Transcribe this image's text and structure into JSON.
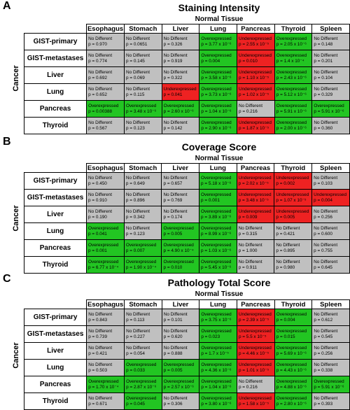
{
  "colors": {
    "not_different": "#c0c0c0",
    "overexpressed": "#22c522",
    "underexpressed": "#ee2222"
  },
  "columns": [
    "Esophagus",
    "Stomach",
    "Liver",
    "Lung",
    "Pancreas",
    "Thyroid",
    "Spleen"
  ],
  "column_group_label": "Normal Tissue",
  "row_group_label": "Cancer",
  "panels": [
    {
      "letter": "A",
      "title": "Staining Intensity",
      "rows": [
        {
          "label": "GIST-primary",
          "cells": [
            {
              "s": "nd",
              "t": "No Different",
              "p": "p = 0.970"
            },
            {
              "s": "nd",
              "t": "No Different",
              "p": "p = 0.0651"
            },
            {
              "s": "nd",
              "t": "No Different",
              "p": "p = 0.326"
            },
            {
              "s": "ov",
              "t": "Overexpressed",
              "p": "p = 3.77 x 10⁻⁶"
            },
            {
              "s": "un",
              "t": "Underexpressed",
              "p": "p = 2.55 x 10⁻⁵"
            },
            {
              "s": "ov",
              "t": "Overexpressed",
              "p": "p = 2.05 x 10⁻⁶"
            },
            {
              "s": "nd",
              "t": "No Different",
              "p": "p = 0.148"
            }
          ]
        },
        {
          "label": "GIST-metastases",
          "cells": [
            {
              "s": "nd",
              "t": "No Different",
              "p": "p = 0.774"
            },
            {
              "s": "nd",
              "t": "No Different",
              "p": "p = 0.145"
            },
            {
              "s": "nd",
              "t": "No Different",
              "p": "p = 0.919"
            },
            {
              "s": "ov",
              "t": "Overexpressed",
              "p": "p = 0.004"
            },
            {
              "s": "un",
              "t": "Underexpressed",
              "p": "p = 0.010"
            },
            {
              "s": "ov",
              "t": "Overexpressed",
              "p": "p = 1.4 x 10⁻⁴"
            },
            {
              "s": "nd",
              "t": "No Different",
              "p": "p = 0.201"
            }
          ]
        },
        {
          "label": "Liver",
          "cells": [
            {
              "s": "nd",
              "t": "No Different",
              "p": "p = 0.692"
            },
            {
              "s": "nd",
              "t": "No Different",
              "p": "p = 0.069"
            },
            {
              "s": "nd",
              "t": "No Different",
              "p": "p = 0.322"
            },
            {
              "s": "ov",
              "t": "Overexpressed",
              "p": "p = 3.58 x 10⁻⁶"
            },
            {
              "s": "un",
              "t": "Underexpressed",
              "p": "p = 1.10 x 10⁻⁵"
            },
            {
              "s": "ov",
              "t": "Overexpressed",
              "p": "p = 2.43 x 10⁻⁶"
            },
            {
              "s": "nd",
              "t": "No Different",
              "p": "p = 0.104"
            }
          ]
        },
        {
          "label": "Lung",
          "cells": [
            {
              "s": "nd",
              "t": "No Different",
              "p": "p = 0.652"
            },
            {
              "s": "nd",
              "t": "No Different",
              "p": "p = 0.115"
            },
            {
              "s": "un",
              "t": "Underexpressed",
              "p": "p = 0.041"
            },
            {
              "s": "ov",
              "t": "Overexpressed",
              "p": "p = 3.73 x 10⁻⁶"
            },
            {
              "s": "un",
              "t": "Underexpressed",
              "p": "p = 1.02 x 10⁻⁵"
            },
            {
              "s": "ov",
              "t": "Overexpressed",
              "p": "p = 5.12 x 10⁻⁶"
            },
            {
              "s": "nd",
              "t": "No Different",
              "p": "p = 0.329"
            }
          ]
        },
        {
          "label": "Pancreas",
          "cells": [
            {
              "s": "ov",
              "t": "Overexpressed",
              "p": "p = 0.00388"
            },
            {
              "s": "ov",
              "t": "Overexpressed",
              "p": "p = 3.48 x 10⁻⁶"
            },
            {
              "s": "ov",
              "t": "Overexpressed",
              "p": "p = 2.60 x 10⁻⁶"
            },
            {
              "s": "ov",
              "t": "Overexpressed",
              "p": "p = 1.04 x 10⁻⁶"
            },
            {
              "s": "nd",
              "t": "No Different",
              "p": "p = 0.216"
            },
            {
              "s": "ov",
              "t": "Overexpressed",
              "p": "p = 5.91 x 10⁻⁶"
            },
            {
              "s": "ov",
              "t": "Overexpressed",
              "p": "p = 5.91 x 10⁻⁶"
            }
          ]
        },
        {
          "label": "Thyroid",
          "cells": [
            {
              "s": "nd",
              "t": "No Different",
              "p": "p = 0.567"
            },
            {
              "s": "nd",
              "t": "No Different",
              "p": "p = 0.123"
            },
            {
              "s": "nd",
              "t": "No Different",
              "p": "p = 0.142"
            },
            {
              "s": "ov",
              "t": "Overexpressed",
              "p": "p = 2.90 x 10⁻⁶"
            },
            {
              "s": "un",
              "t": "Underexpressed",
              "p": "p = 1.87 x 10⁻⁵"
            },
            {
              "s": "ov",
              "t": "Overexpressed",
              "p": "p = 2.00 x 10⁻⁶"
            },
            {
              "s": "nd",
              "t": "No Different",
              "p": "p = 0.360"
            }
          ]
        }
      ]
    },
    {
      "letter": "B",
      "title": "Coverage Score",
      "rows": [
        {
          "label": "GIST-primary",
          "cells": [
            {
              "s": "nd",
              "t": "No Different",
              "p": "p = 0.450"
            },
            {
              "s": "nd",
              "t": "No Different",
              "p": "p = 0.649"
            },
            {
              "s": "nd",
              "t": "No Different",
              "p": "p = 0.657"
            },
            {
              "s": "ov",
              "t": "Overexpressed",
              "p": "p = 5.18 x 10⁻⁶"
            },
            {
              "s": "un",
              "t": "Underexpressed",
              "p": "p = 2.02 x 10⁻⁵"
            },
            {
              "s": "un",
              "t": "Underexpressed",
              "p": "p = 0.002"
            },
            {
              "s": "nd",
              "t": "No Different",
              "p": "p = 0.103"
            }
          ]
        },
        {
          "label": "GIST-metastases",
          "cells": [
            {
              "s": "nd",
              "t": "No Different",
              "p": "p = 0.910"
            },
            {
              "s": "nd",
              "t": "No Different",
              "p": "p = 0.896"
            },
            {
              "s": "nd",
              "t": "No Different",
              "p": "p = 0.769"
            },
            {
              "s": "ov",
              "t": "Overexpressed",
              "p": "p = 0.001"
            },
            {
              "s": "un",
              "t": "Underexpressed",
              "p": "p = 3.48 x 10⁻⁵"
            },
            {
              "s": "un",
              "t": "Underexpressed",
              "p": "p = 1.07 x 10⁻⁵"
            },
            {
              "s": "un",
              "t": "Underexpressed",
              "p": "p = 0.004"
            }
          ]
        },
        {
          "label": "Liver",
          "cells": [
            {
              "s": "nd",
              "t": "No Different",
              "p": "p = 0.190"
            },
            {
              "s": "nd",
              "t": "No Different",
              "p": "p = 0.342"
            },
            {
              "s": "nd",
              "t": "No Different",
              "p": "p = 0.174"
            },
            {
              "s": "ov",
              "t": "Overexpressed",
              "p": "p = 3.89 x 10⁻⁶"
            },
            {
              "s": "un",
              "t": "Underexpressed",
              "p": "p = 0.009"
            },
            {
              "s": "un",
              "t": "Underexpressed",
              "p": "p = 0.005"
            },
            {
              "s": "nd",
              "t": "No Different",
              "p": "p = 0.256"
            }
          ]
        },
        {
          "label": "Lung",
          "cells": [
            {
              "s": "ov",
              "t": "Overexpressed",
              "p": "p = 0.041"
            },
            {
              "s": "nd",
              "t": "No Different",
              "p": "p = 0.123"
            },
            {
              "s": "ov",
              "t": "Overexpressed",
              "p": "p = 0.005"
            },
            {
              "s": "ov",
              "t": "Overexpressed",
              "p": "p = 8.99 x 10⁻⁶"
            },
            {
              "s": "nd",
              "t": "No Different",
              "p": "p = 0.315"
            },
            {
              "s": "nd",
              "t": "No Different",
              "p": "p = 0.421"
            },
            {
              "s": "nd",
              "t": "No Different",
              "p": "p = 0.600"
            }
          ]
        },
        {
          "label": "Pancreas",
          "cells": [
            {
              "s": "ov",
              "t": "Overexpressed",
              "p": "p = 0.001"
            },
            {
              "s": "ov",
              "t": "Overexpressed",
              "p": "p = 0.007"
            },
            {
              "s": "ov",
              "t": "Overexpressed",
              "p": "p = 4.90 x 10⁻⁴"
            },
            {
              "s": "ov",
              "t": "Overexpressed",
              "p": "p = 1.03 x 10⁻⁶"
            },
            {
              "s": "nd",
              "t": "No Different",
              "p": "p = 1.000"
            },
            {
              "s": "nd",
              "t": "No Different",
              "p": "p = 0.895"
            },
            {
              "s": "nd",
              "t": "No Different",
              "p": "p = 0.755"
            }
          ]
        },
        {
          "label": "Thyroid",
          "cells": [
            {
              "s": "ov",
              "t": "Overexpressed",
              "p": "p = 6.77 x 10⁻⁴"
            },
            {
              "s": "ov",
              "t": "Overexpressed",
              "p": "p = 1.90 x 10⁻⁴"
            },
            {
              "s": "ov",
              "t": "Overexpressed",
              "p": "p = 0.010"
            },
            {
              "s": "ov",
              "t": "Overexpressed",
              "p": "p = 5.45 x 10⁻⁶"
            },
            {
              "s": "nd",
              "t": "No Different",
              "p": "p = 0.911"
            },
            {
              "s": "nd",
              "t": "No Different",
              "p": "p = 0.980"
            },
            {
              "s": "nd",
              "t": "No Different",
              "p": "p = 0.645"
            }
          ]
        }
      ]
    },
    {
      "letter": "C",
      "title": "Pathology Total Score",
      "rows": [
        {
          "label": "GIST-primary",
          "cells": [
            {
              "s": "nd",
              "t": "No Different",
              "p": "p = 0.843"
            },
            {
              "s": "nd",
              "t": "No Different",
              "p": "p = 0.113"
            },
            {
              "s": "nd",
              "t": "No Different",
              "p": "p = 0.101"
            },
            {
              "s": "ov",
              "t": "Overexpressed",
              "p": "p = 3.75 x 10⁻⁶"
            },
            {
              "s": "un",
              "t": "Underexpressed",
              "p": "p = 2.39 x 10⁻⁵"
            },
            {
              "s": "ov",
              "t": "Overexpressed",
              "p": "p = 0.004"
            },
            {
              "s": "nd",
              "t": "No Different",
              "p": "p = 0.612"
            }
          ]
        },
        {
          "label": "GIST-metastases",
          "cells": [
            {
              "s": "nd",
              "t": "No Different",
              "p": "p = 0.739"
            },
            {
              "s": "nd",
              "t": "No Different",
              "p": "p = 0.227"
            },
            {
              "s": "nd",
              "t": "No Different",
              "p": "p = 0.620"
            },
            {
              "s": "ov",
              "t": "Overexpressed",
              "p": "p = 0.023"
            },
            {
              "s": "un",
              "t": "Underexpressed",
              "p": "p = 5.5 x 10⁻⁵"
            },
            {
              "s": "ov",
              "t": "Overexpressed",
              "p": "p = 0.015"
            },
            {
              "s": "nd",
              "t": "No Different",
              "p": "p = 0.545"
            }
          ]
        },
        {
          "label": "Liver",
          "cells": [
            {
              "s": "nd",
              "t": "No Different",
              "p": "p = 0.421"
            },
            {
              "s": "nd",
              "t": "No Different",
              "p": "p = 0.054"
            },
            {
              "s": "nd",
              "t": "No Different",
              "p": "p = 0.888"
            },
            {
              "s": "ov",
              "t": "Overexpressed",
              "p": "p = 1.7 x 10⁻⁵"
            },
            {
              "s": "un",
              "t": "Underexpressed",
              "p": "p = 4.46 x 10⁻⁵"
            },
            {
              "s": "ov",
              "t": "Overexpressed",
              "p": "p = 5.69 x 10⁻⁶"
            },
            {
              "s": "nd",
              "t": "No Different",
              "p": "p = 0.256"
            }
          ]
        },
        {
          "label": "Lung",
          "cells": [
            {
              "s": "nd",
              "t": "No Different",
              "p": "p = 0.503"
            },
            {
              "s": "ov",
              "t": "Overexpressed",
              "p": "p = 0.033"
            },
            {
              "s": "ov",
              "t": "Overexpressed",
              "p": "p = 0.005"
            },
            {
              "s": "ov",
              "t": "Overexpressed",
              "p": "p = 4.36 x 10⁻⁶"
            },
            {
              "s": "un",
              "t": "Underexpressed",
              "p": "p = 1.01 x 10⁻⁵"
            },
            {
              "s": "ov",
              "t": "Overexpressed",
              "p": "p = 4.43 x 10⁻⁶"
            },
            {
              "s": "nd",
              "t": "No Different",
              "p": "p = 0.338"
            }
          ]
        },
        {
          "label": "Pancreas",
          "cells": [
            {
              "s": "ov",
              "t": "Overexpressed",
              "p": "p = 1.70 x 10⁻⁴"
            },
            {
              "s": "ov",
              "t": "Overexpressed",
              "p": "p = 2.87 x 10⁻⁶"
            },
            {
              "s": "ov",
              "t": "Overexpressed",
              "p": "p = 2.57 x 10⁻⁶"
            },
            {
              "s": "ov",
              "t": "Overexpressed",
              "p": "p = 1.04 x 10⁻⁶"
            },
            {
              "s": "nd",
              "t": "No Different",
              "p": "p = 0.216"
            },
            {
              "s": "ov",
              "t": "Overexpressed",
              "p": "p = 4.88 x 10⁻⁶"
            },
            {
              "s": "ov",
              "t": "Overexpressed",
              "p": "p = 5.91 x 10⁻⁶"
            }
          ]
        },
        {
          "label": "Thyroid",
          "cells": [
            {
              "s": "nd",
              "t": "No Different",
              "p": "p = 0.671"
            },
            {
              "s": "ov",
              "t": "Overexpressed",
              "p": "p = 0.045"
            },
            {
              "s": "nd",
              "t": "No Different",
              "p": "p = 0.306"
            },
            {
              "s": "ov",
              "t": "Overexpressed",
              "p": "p = 3.80 x 10⁻⁶"
            },
            {
              "s": "un",
              "t": "Underexpressed",
              "p": "p = 1.58 x 10⁻⁵"
            },
            {
              "s": "ov",
              "t": "Overexpressed",
              "p": "p = 2.80 x 10⁻⁶"
            },
            {
              "s": "nd",
              "t": "No Different",
              "p": "p = 0.393"
            }
          ]
        }
      ]
    }
  ]
}
